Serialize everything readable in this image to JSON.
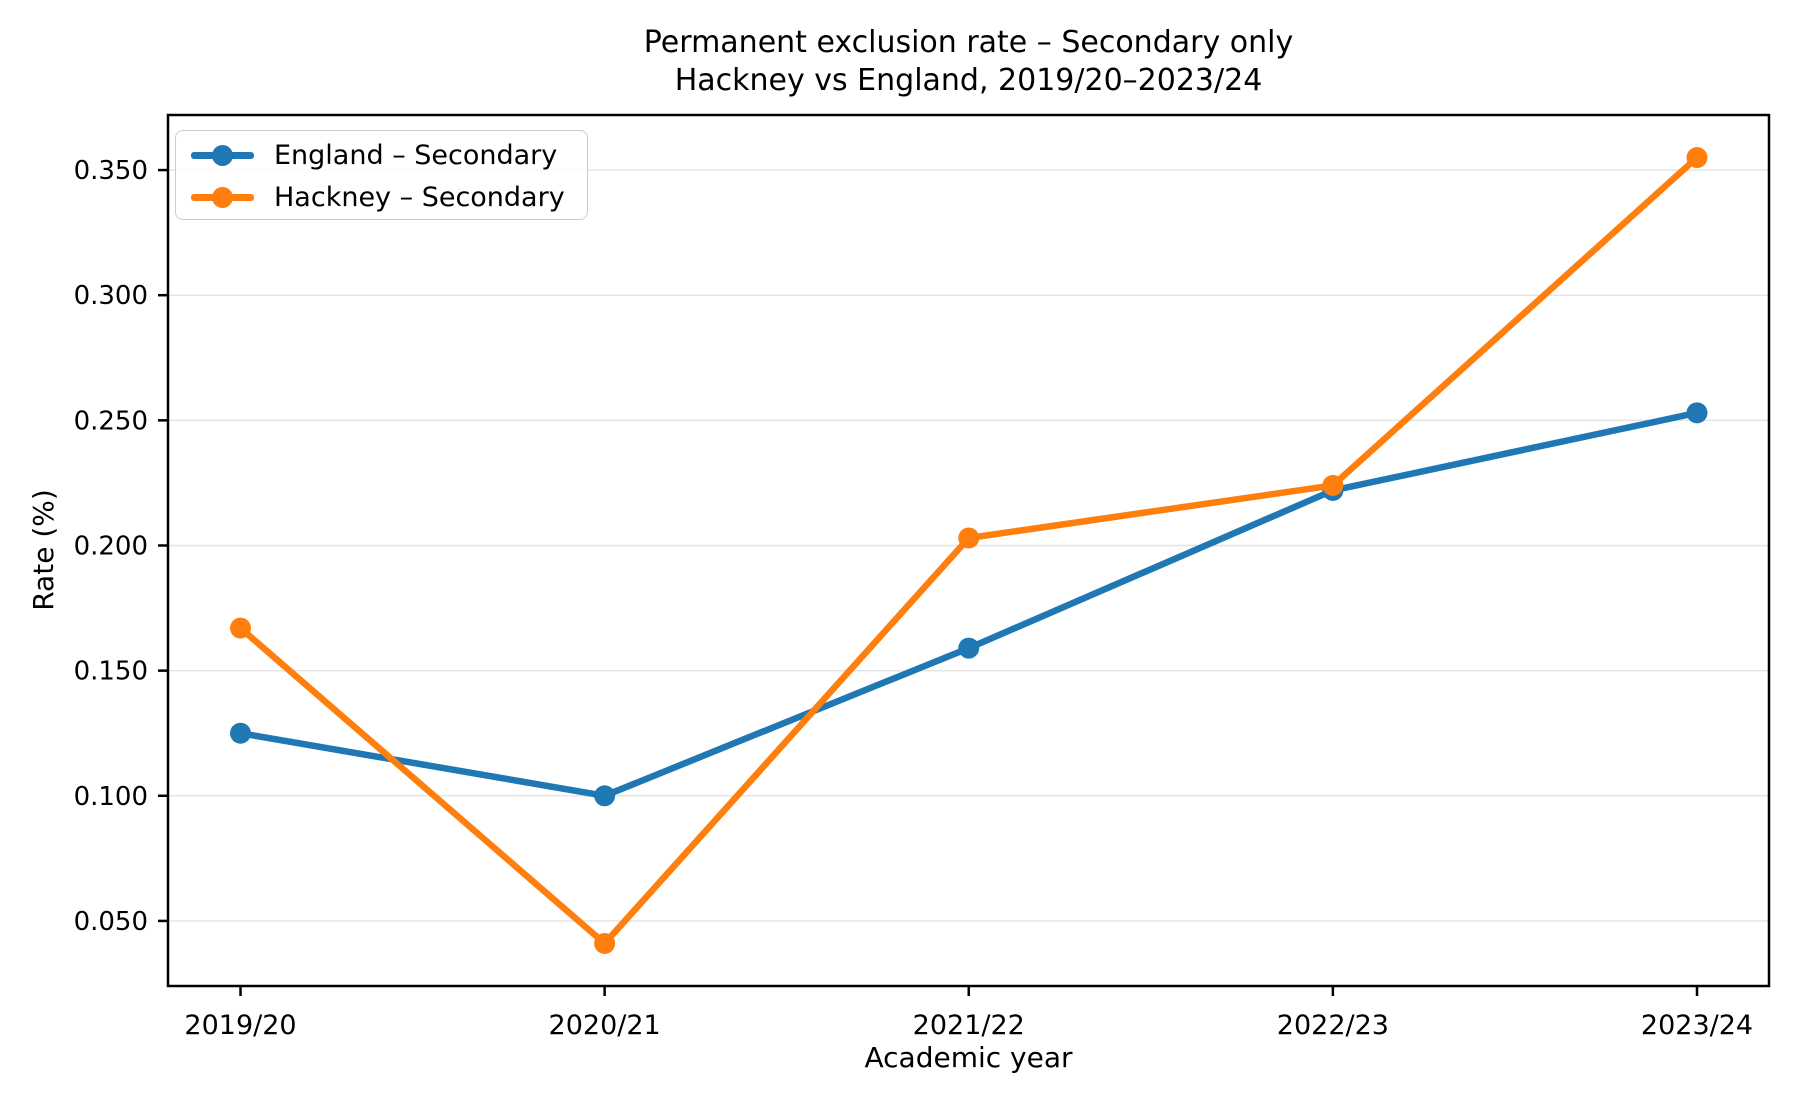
{
  "chart_data": {
    "type": "line",
    "title": "Permanent exclusion rate – Secondary only",
    "subtitle": "Hackney vs England, 2019/20–2023/24",
    "xlabel": "Academic year",
    "ylabel": "Rate (%)",
    "categories": [
      "2019/20",
      "2020/21",
      "2021/22",
      "2022/23",
      "2023/24"
    ],
    "series": [
      {
        "name": "England – Secondary",
        "color": "#1f77b4",
        "values": [
          0.125,
          0.1,
          0.159,
          0.222,
          0.253
        ]
      },
      {
        "name": "Hackney – Secondary",
        "color": "#ff7f0e",
        "values": [
          0.167,
          0.041,
          0.203,
          0.224,
          0.355
        ]
      }
    ],
    "yticks": [
      0.05,
      0.1,
      0.15,
      0.2,
      0.25,
      0.3,
      0.35
    ],
    "ytick_labels": [
      "0.050",
      "0.100",
      "0.150",
      "0.200",
      "0.250",
      "0.300",
      "0.350"
    ],
    "ylim": [
      0.024,
      0.372
    ],
    "grid": "horizontal",
    "legend_position": "upper left",
    "colors": {
      "grid_line": "#e3e3e3",
      "axis_spine": "#000000",
      "tick_text": "#000000",
      "legend_border": "#cccccc",
      "background": "#ffffff"
    }
  }
}
